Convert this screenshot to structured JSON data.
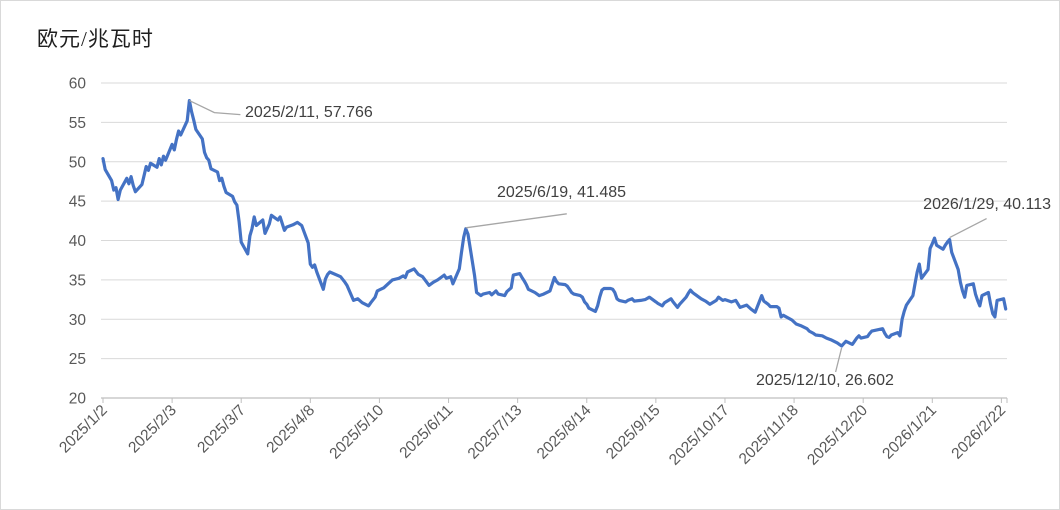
{
  "chart_data": {
    "type": "line",
    "title": "欧元/兆瓦时",
    "grid": "horizontal",
    "legend": "none",
    "y_axis": {
      "min": 20,
      "max": 60,
      "step": 5,
      "tick_labels": [
        "20",
        "25",
        "30",
        "35",
        "40",
        "45",
        "50",
        "55",
        "60"
      ]
    },
    "x_axis": {
      "tick_labels": [
        "2025/1/2",
        "2025/2/3",
        "2025/3/7",
        "2025/4/8",
        "2025/5/10",
        "2025/6/11",
        "2025/7/13",
        "2025/8/14",
        "2025/9/15",
        "2025/10/17",
        "2025/11/18",
        "2025/12/20",
        "2026/1/21",
        "2026/2/22"
      ],
      "label_rotation_deg": -45
    },
    "annotations": [
      {
        "label": "2025/2/11, 57.766",
        "date": "2025/2/11",
        "value": 57.766
      },
      {
        "label": "2025/6/19, 41.485",
        "date": "2025/6/19",
        "value": 41.485
      },
      {
        "label": "2026/1/29, 40.113",
        "date": "2026/1/29",
        "value": 40.113
      },
      {
        "label": "2025/12/10, 26.602",
        "date": "2025/12/10",
        "value": 26.602
      }
    ],
    "colors": {
      "line": "#4472C4",
      "grid": "#D9D9D9",
      "axis": "#BFBFBF",
      "tick_text": "#595959",
      "annotation_text": "#404040",
      "leader": "#A6A6A6",
      "background": "#FFFFFF",
      "border": "#D9D9D9"
    },
    "series": [
      {
        "color": "#4472C4",
        "points": [
          [
            "2025/1/2",
            50.4
          ],
          [
            "2025/1/3",
            49.0
          ],
          [
            "2025/1/6",
            47.6
          ],
          [
            "2025/1/7",
            46.4
          ],
          [
            "2025/1/8",
            46.7
          ],
          [
            "2025/1/9",
            45.2
          ],
          [
            "2025/1/10",
            46.4
          ],
          [
            "2025/1/13",
            47.9
          ],
          [
            "2025/1/14",
            47.2
          ],
          [
            "2025/1/15",
            48.1
          ],
          [
            "2025/1/16",
            47.0
          ],
          [
            "2025/1/17",
            46.2
          ],
          [
            "2025/1/20",
            47.1
          ],
          [
            "2025/1/21",
            48.2
          ],
          [
            "2025/1/22",
            49.4
          ],
          [
            "2025/1/23",
            48.9
          ],
          [
            "2025/1/24",
            49.8
          ],
          [
            "2025/1/27",
            49.3
          ],
          [
            "2025/1/28",
            50.4
          ],
          [
            "2025/1/29",
            49.6
          ],
          [
            "2025/1/30",
            50.7
          ],
          [
            "2025/1/31",
            50.2
          ],
          [
            "2025/2/3",
            52.2
          ],
          [
            "2025/2/4",
            51.5
          ],
          [
            "2025/2/5",
            52.8
          ],
          [
            "2025/2/6",
            53.9
          ],
          [
            "2025/2/7",
            53.4
          ],
          [
            "2025/2/10",
            55.2
          ],
          [
            "2025/2/11",
            57.766
          ],
          [
            "2025/2/12",
            56.4
          ],
          [
            "2025/2/13",
            55.3
          ],
          [
            "2025/2/14",
            54.1
          ],
          [
            "2025/2/17",
            52.9
          ],
          [
            "2025/2/18",
            51.2
          ],
          [
            "2025/2/19",
            50.5
          ],
          [
            "2025/2/20",
            50.2
          ],
          [
            "2025/2/21",
            49.1
          ],
          [
            "2025/2/24",
            48.7
          ],
          [
            "2025/2/25",
            47.6
          ],
          [
            "2025/2/26",
            47.9
          ],
          [
            "2025/2/27",
            46.9
          ],
          [
            "2025/2/28",
            46.1
          ],
          [
            "2025/3/3",
            45.6
          ],
          [
            "2025/3/4",
            44.9
          ],
          [
            "2025/3/5",
            44.5
          ],
          [
            "2025/3/6",
            42.4
          ],
          [
            "2025/3/7",
            39.8
          ],
          [
            "2025/3/10",
            38.3
          ],
          [
            "2025/3/11",
            40.6
          ],
          [
            "2025/3/12",
            41.5
          ],
          [
            "2025/3/13",
            43.0
          ],
          [
            "2025/3/14",
            41.9
          ],
          [
            "2025/3/17",
            42.6
          ],
          [
            "2025/3/18",
            40.9
          ],
          [
            "2025/3/20",
            42.1
          ],
          [
            "2025/3/21",
            43.2
          ],
          [
            "2025/3/24",
            42.6
          ],
          [
            "2025/3/25",
            43.0
          ],
          [
            "2025/3/27",
            41.3
          ],
          [
            "2025/3/28",
            41.7
          ],
          [
            "2025/3/31",
            42.0
          ],
          [
            "2025/4/2",
            42.3
          ],
          [
            "2025/4/4",
            41.9
          ],
          [
            "2025/4/7",
            39.7
          ],
          [
            "2025/4/8",
            37.0
          ],
          [
            "2025/4/9",
            36.6
          ],
          [
            "2025/4/10",
            36.9
          ],
          [
            "2025/4/11",
            36.0
          ],
          [
            "2025/4/14",
            33.8
          ],
          [
            "2025/4/15",
            35.1
          ],
          [
            "2025/4/16",
            35.7
          ],
          [
            "2025/4/17",
            36.0
          ],
          [
            "2025/4/22",
            35.4
          ],
          [
            "2025/4/24",
            34.7
          ],
          [
            "2025/4/25",
            34.3
          ],
          [
            "2025/4/28",
            32.4
          ],
          [
            "2025/4/30",
            32.6
          ],
          [
            "2025/5/2",
            32.1
          ],
          [
            "2025/5/5",
            31.7
          ],
          [
            "2025/5/6",
            32.1
          ],
          [
            "2025/5/8",
            32.8
          ],
          [
            "2025/5/9",
            33.6
          ],
          [
            "2025/5/12",
            34.0
          ],
          [
            "2025/5/14",
            34.5
          ],
          [
            "2025/5/16",
            35.0
          ],
          [
            "2025/5/19",
            35.2
          ],
          [
            "2025/5/21",
            35.5
          ],
          [
            "2025/5/22",
            35.3
          ],
          [
            "2025/5/23",
            36.0
          ],
          [
            "2025/5/26",
            36.4
          ],
          [
            "2025/5/28",
            35.7
          ],
          [
            "2025/5/30",
            35.4
          ],
          [
            "2025/6/2",
            34.3
          ],
          [
            "2025/6/4",
            34.7
          ],
          [
            "2025/6/6",
            35.0
          ],
          [
            "2025/6/9",
            35.6
          ],
          [
            "2025/6/10",
            35.2
          ],
          [
            "2025/6/12",
            35.4
          ],
          [
            "2025/6/13",
            34.5
          ],
          [
            "2025/6/16",
            36.4
          ],
          [
            "2025/6/17",
            38.5
          ],
          [
            "2025/6/18",
            40.4
          ],
          [
            "2025/6/19",
            41.485
          ],
          [
            "2025/6/20",
            40.8
          ],
          [
            "2025/6/23",
            35.6
          ],
          [
            "2025/6/24",
            33.4
          ],
          [
            "2025/6/26",
            33.0
          ],
          [
            "2025/6/27",
            33.2
          ],
          [
            "2025/6/30",
            33.4
          ],
          [
            "2025/7/1",
            33.1
          ],
          [
            "2025/7/3",
            33.6
          ],
          [
            "2025/7/4",
            33.2
          ],
          [
            "2025/7/7",
            33.0
          ],
          [
            "2025/7/8",
            33.5
          ],
          [
            "2025/7/10",
            34.0
          ],
          [
            "2025/7/11",
            35.6
          ],
          [
            "2025/7/14",
            35.8
          ],
          [
            "2025/7/15",
            35.3
          ],
          [
            "2025/7/16",
            34.9
          ],
          [
            "2025/7/17",
            34.4
          ],
          [
            "2025/7/18",
            33.8
          ],
          [
            "2025/7/21",
            33.4
          ],
          [
            "2025/7/23",
            33.0
          ],
          [
            "2025/7/25",
            33.2
          ],
          [
            "2025/7/28",
            33.6
          ],
          [
            "2025/7/30",
            35.3
          ],
          [
            "2025/7/31",
            34.8
          ],
          [
            "2025/8/1",
            34.5
          ],
          [
            "2025/8/4",
            34.4
          ],
          [
            "2025/8/5",
            34.2
          ],
          [
            "2025/8/6",
            33.8
          ],
          [
            "2025/8/7",
            33.4
          ],
          [
            "2025/8/8",
            33.2
          ],
          [
            "2025/8/11",
            33.0
          ],
          [
            "2025/8/12",
            32.8
          ],
          [
            "2025/8/13",
            32.2
          ],
          [
            "2025/8/14",
            31.9
          ],
          [
            "2025/8/15",
            31.4
          ],
          [
            "2025/8/18",
            31.0
          ],
          [
            "2025/8/19",
            31.7
          ],
          [
            "2025/8/20",
            32.8
          ],
          [
            "2025/8/21",
            33.7
          ],
          [
            "2025/8/22",
            33.9
          ],
          [
            "2025/8/25",
            33.9
          ],
          [
            "2025/8/26",
            33.8
          ],
          [
            "2025/8/27",
            33.4
          ],
          [
            "2025/8/28",
            32.6
          ],
          [
            "2025/8/29",
            32.4
          ],
          [
            "2025/9/1",
            32.2
          ],
          [
            "2025/9/2",
            32.4
          ],
          [
            "2025/9/4",
            32.6
          ],
          [
            "2025/9/5",
            32.3
          ],
          [
            "2025/9/8",
            32.4
          ],
          [
            "2025/9/10",
            32.5
          ],
          [
            "2025/9/12",
            32.8
          ],
          [
            "2025/9/15",
            32.2
          ],
          [
            "2025/9/16",
            32.0
          ],
          [
            "2025/9/18",
            31.7
          ],
          [
            "2025/9/19",
            32.1
          ],
          [
            "2025/9/22",
            32.6
          ],
          [
            "2025/9/23",
            32.2
          ],
          [
            "2025/9/25",
            31.5
          ],
          [
            "2025/9/26",
            31.9
          ],
          [
            "2025/9/29",
            32.8
          ],
          [
            "2025/9/30",
            33.3
          ],
          [
            "2025/10/1",
            33.7
          ],
          [
            "2025/10/2",
            33.4
          ],
          [
            "2025/10/3",
            33.2
          ],
          [
            "2025/10/6",
            32.6
          ],
          [
            "2025/10/8",
            32.3
          ],
          [
            "2025/10/10",
            31.9
          ],
          [
            "2025/10/13",
            32.4
          ],
          [
            "2025/10/14",
            32.8
          ],
          [
            "2025/10/16",
            32.4
          ],
          [
            "2025/10/17",
            32.5
          ],
          [
            "2025/10/20",
            32.2
          ],
          [
            "2025/10/22",
            32.4
          ],
          [
            "2025/10/24",
            31.5
          ],
          [
            "2025/10/27",
            31.8
          ],
          [
            "2025/10/29",
            31.3
          ],
          [
            "2025/10/31",
            30.9
          ],
          [
            "2025/11/3",
            33.0
          ],
          [
            "2025/11/4",
            32.3
          ],
          [
            "2025/11/6",
            31.9
          ],
          [
            "2025/11/7",
            31.6
          ],
          [
            "2025/11/10",
            31.6
          ],
          [
            "2025/11/11",
            31.4
          ],
          [
            "2025/11/12",
            30.3
          ],
          [
            "2025/11/13",
            30.5
          ],
          [
            "2025/11/17",
            29.9
          ],
          [
            "2025/11/19",
            29.4
          ],
          [
            "2025/11/21",
            29.2
          ],
          [
            "2025/11/24",
            28.8
          ],
          [
            "2025/11/25",
            28.5
          ],
          [
            "2025/11/27",
            28.2
          ],
          [
            "2025/11/28",
            28.0
          ],
          [
            "2025/12/1",
            27.9
          ],
          [
            "2025/12/3",
            27.6
          ],
          [
            "2025/12/5",
            27.4
          ],
          [
            "2025/12/8",
            27.0
          ],
          [
            "2025/12/9",
            26.8
          ],
          [
            "2025/12/10",
            26.602
          ],
          [
            "2025/12/11",
            26.9
          ],
          [
            "2025/12/12",
            27.2
          ],
          [
            "2025/12/15",
            26.8
          ],
          [
            "2025/12/16",
            27.2
          ],
          [
            "2025/12/17",
            27.6
          ],
          [
            "2025/12/18",
            27.9
          ],
          [
            "2025/12/19",
            27.6
          ],
          [
            "2025/12/22",
            27.8
          ],
          [
            "2025/12/23",
            28.2
          ],
          [
            "2025/12/24",
            28.5
          ],
          [
            "2025/12/29",
            28.8
          ],
          [
            "2025/12/30",
            28.2
          ],
          [
            "2025/12/31",
            27.8
          ],
          [
            "2026/1/1",
            27.7
          ],
          [
            "2026/1/2",
            28.0
          ],
          [
            "2026/1/5",
            28.3
          ],
          [
            "2026/1/6",
            27.9
          ],
          [
            "2026/1/7",
            30.0
          ],
          [
            "2026/1/8",
            31.0
          ],
          [
            "2026/1/9",
            31.8
          ],
          [
            "2026/1/12",
            33.0
          ],
          [
            "2026/1/13",
            34.5
          ],
          [
            "2026/1/14",
            36.0
          ],
          [
            "2026/1/15",
            37.0
          ],
          [
            "2026/1/16",
            35.2
          ],
          [
            "2026/1/19",
            36.3
          ],
          [
            "2026/1/20",
            39.0
          ],
          [
            "2026/1/21",
            39.6
          ],
          [
            "2026/1/22",
            40.3
          ],
          [
            "2026/1/23",
            39.4
          ],
          [
            "2026/1/26",
            38.9
          ],
          [
            "2026/1/27",
            39.4
          ],
          [
            "2026/1/28",
            39.8
          ],
          [
            "2026/1/29",
            40.113
          ],
          [
            "2026/1/30",
            38.5
          ],
          [
            "2026/2/2",
            36.3
          ],
          [
            "2026/2/3",
            34.7
          ],
          [
            "2026/2/4",
            33.6
          ],
          [
            "2026/2/5",
            32.8
          ],
          [
            "2026/2/6",
            34.3
          ],
          [
            "2026/2/9",
            34.5
          ],
          [
            "2026/2/10",
            33.2
          ],
          [
            "2026/2/11",
            32.4
          ],
          [
            "2026/2/12",
            31.7
          ],
          [
            "2026/2/13",
            33.0
          ],
          [
            "2026/2/16",
            33.4
          ],
          [
            "2026/2/17",
            31.9
          ],
          [
            "2026/2/18",
            30.7
          ],
          [
            "2026/2/19",
            30.3
          ],
          [
            "2026/2/20",
            32.4
          ],
          [
            "2026/2/23",
            32.6
          ],
          [
            "2026/2/24",
            31.3
          ]
        ]
      }
    ]
  }
}
